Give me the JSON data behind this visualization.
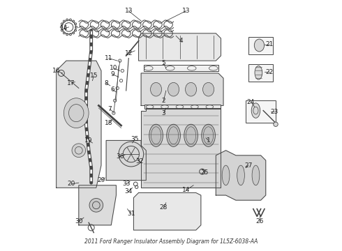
{
  "title": "2011 Ford Ranger Insulator Assembly Diagram for 1L5Z-6038-AA",
  "background_color": "#ffffff",
  "border_color": "#cccccc",
  "fig_width": 4.9,
  "fig_height": 3.6,
  "dpi": 100,
  "label_fontsize": 6.5,
  "label_color": "#222222"
}
